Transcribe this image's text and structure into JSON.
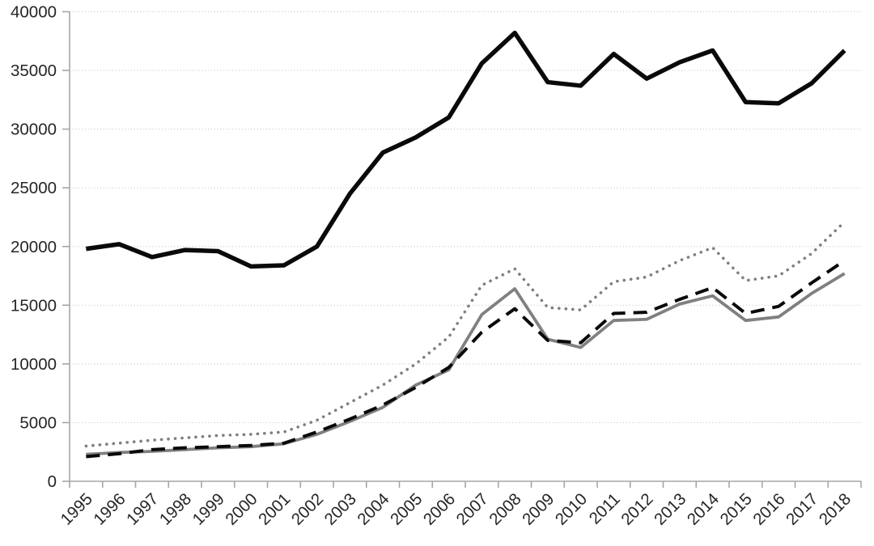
{
  "chart_data": {
    "type": "line",
    "title": "",
    "xlabel": "",
    "ylabel": "",
    "legend": "none",
    "grid": "horizontal-dotted",
    "ylim": [
      0,
      40000
    ],
    "ytick_step": 5000,
    "ytick_labels": [
      "0",
      "5000",
      "10000",
      "15000",
      "20000",
      "25000",
      "30000",
      "35000",
      "40000"
    ],
    "categories": [
      "1995",
      "1996",
      "1997",
      "1998",
      "1999",
      "2000",
      "2001",
      "2002",
      "2003",
      "2004",
      "2005",
      "2006",
      "2007",
      "2008",
      "2009",
      "2010",
      "2011",
      "2012",
      "2013",
      "2014",
      "2015",
      "2016",
      "2017",
      "2018"
    ],
    "series": [
      {
        "name": "dotted-gray-line",
        "style": "dotted",
        "color": "#7f7f7f",
        "width": 3.6,
        "values": [
          3000,
          3250,
          3500,
          3700,
          3900,
          4000,
          4200,
          5200,
          6700,
          8200,
          10000,
          12300,
          16700,
          18100,
          14800,
          14600,
          17000,
          17400,
          18800,
          19900,
          17100,
          17500,
          19400,
          22100
        ]
      },
      {
        "name": "solid-gray-line",
        "style": "solid",
        "color": "#808080",
        "width": 3.8,
        "values": [
          2300,
          2450,
          2550,
          2700,
          2850,
          2950,
          3200,
          4000,
          5100,
          6300,
          8200,
          9500,
          14200,
          16400,
          12100,
          11400,
          13700,
          13800,
          15100,
          15800,
          13700,
          14000,
          16000,
          17700
        ]
      },
      {
        "name": "dashed-black-line",
        "style": "dashed",
        "color": "#0a0a0a",
        "width": 4,
        "values": [
          2100,
          2350,
          2700,
          2850,
          2950,
          3050,
          3250,
          4200,
          5300,
          6500,
          8000,
          9700,
          12700,
          14700,
          12000,
          11800,
          14300,
          14400,
          15500,
          16500,
          14300,
          14900,
          16900,
          18800
        ]
      },
      {
        "name": "thick-solid-black-line",
        "style": "solid",
        "color": "#0a0a0a",
        "width": 5.5,
        "values": [
          19800,
          20200,
          19100,
          19700,
          19600,
          18300,
          18400,
          20000,
          24500,
          28000,
          29300,
          31000,
          35600,
          38200,
          34000,
          33700,
          36400,
          34300,
          35700,
          36700,
          32300,
          32200,
          33900,
          36700
        ]
      }
    ],
    "axis_color": "#a6a6a6",
    "gridline_color": "#c9c9c9",
    "label_color": "#262626"
  }
}
